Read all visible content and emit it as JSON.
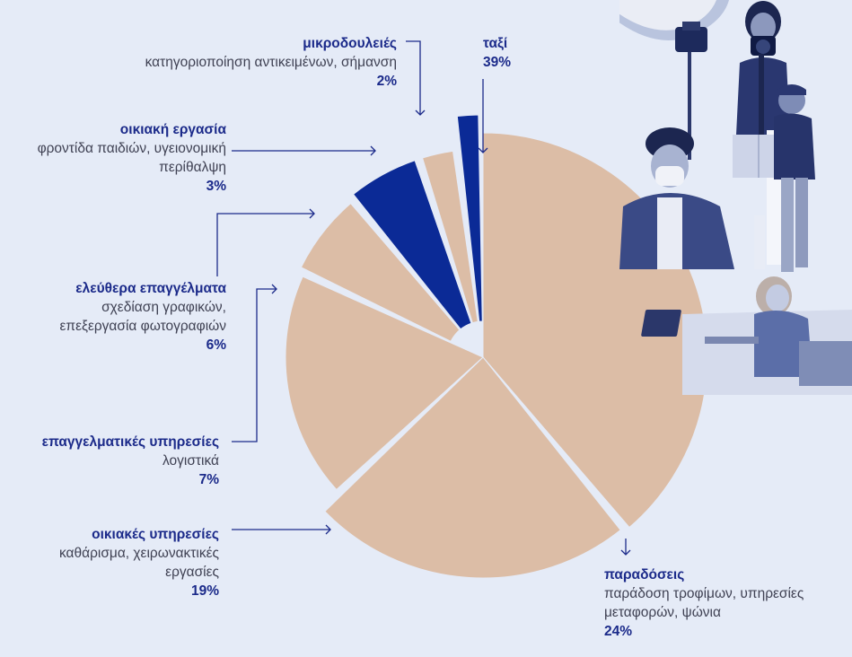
{
  "colors": {
    "background": "#e5ebf7",
    "slice_light": "#dcbda6",
    "slice_dark": "#0b2a96",
    "leader": "#1b2a8a",
    "photo_tint": "#5b6ea8"
  },
  "photo": {
    "description_icon": "gig-workers-photo-icon"
  },
  "chart_data": {
    "type": "pie",
    "style": "exploded-radial-varying-radius",
    "slices": [
      {
        "key": "taxi",
        "title": "ταξί",
        "description": "",
        "value": 39,
        "label": "39%",
        "highlight": false
      },
      {
        "key": "deliveries",
        "title": "παραδόσεις",
        "description": "παράδοση τροφίμων, υπηρεσίες μεταφορών, ψώνια",
        "value": 24,
        "label": "24%",
        "highlight": false
      },
      {
        "key": "home_services",
        "title": "οικιακές υπηρεσίες",
        "description": "καθάρισμα, χειρωνακτικές εργασίες",
        "value": 19,
        "label": "19%",
        "highlight": false
      },
      {
        "key": "professional",
        "title": "επαγγελματικές υπηρεσίες",
        "description": "λογιστικά",
        "value": 7,
        "label": "7%",
        "highlight": false
      },
      {
        "key": "freelance",
        "title": "ελεύθερα επαγγέλματα",
        "description": "σχεδίαση γραφικών, επεξεργασία φωτογραφιών",
        "value": 6,
        "label": "6%",
        "highlight": true
      },
      {
        "key": "housework",
        "title": "οικιακή εργασία",
        "description": "φροντίδα παιδιών, υγειονομική περίθαλψη",
        "value": 3,
        "label": "3%",
        "highlight": false
      },
      {
        "key": "microtasks",
        "title": "μικροδουλειές",
        "description": "κατηγοριοποίηση αντικειμένων, σήμανση",
        "value": 2,
        "label": "2%",
        "highlight": true
      }
    ]
  }
}
